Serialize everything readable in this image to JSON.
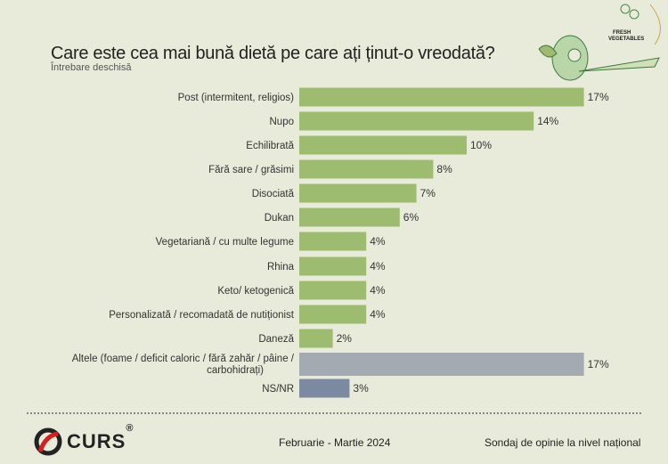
{
  "header": {
    "title": "Care este cea mai bună dietă pe care ați ținut-o vreodată?",
    "subtitle": "Întrebare deschisă",
    "decoration_text": "FRESH VEGETABLES"
  },
  "chart_data": {
    "type": "bar",
    "orientation": "horizontal",
    "title": "Care este cea mai bună dietă pe care ați ținut-o vreodată?",
    "subtitle": "Întrebare deschisă",
    "categories": [
      "Post (intermitent, religios)",
      "Nupo",
      "Echilibrată",
      "Fără sare / grăsimi",
      "Disociată",
      "Dukan",
      "Vegetariană / cu multe legume",
      "Rhina",
      "Keto/ ketogenică",
      "Personalizată / recomadată de nutiționist",
      "Daneză",
      "Altele (foame / deficit caloric / fără zahăr / pâine / carbohidrați)",
      "NS/NR"
    ],
    "values": [
      17,
      14,
      10,
      8,
      7,
      6,
      4,
      4,
      4,
      4,
      2,
      17,
      3
    ],
    "value_labels": [
      "17%",
      "14%",
      "10%",
      "8%",
      "7%",
      "6%",
      "4%",
      "4%",
      "4%",
      "4%",
      "2%",
      "17%",
      "3%"
    ],
    "colors": [
      "#9dbc70",
      "#9dbc70",
      "#9dbc70",
      "#9dbc70",
      "#9dbc70",
      "#9dbc70",
      "#9dbc70",
      "#9dbc70",
      "#9dbc70",
      "#9dbc70",
      "#9dbc70",
      "#a3aab1",
      "#7b89a1"
    ],
    "unit": "%",
    "grid": false,
    "legend": "none"
  },
  "footer": {
    "logo": "CURS",
    "registered": "®",
    "period": "Februarie - Martie 2024",
    "survey": "Sondaj de opinie la nivel național"
  }
}
